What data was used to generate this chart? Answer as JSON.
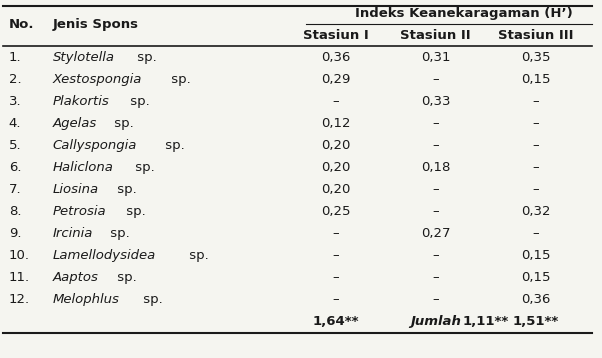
{
  "header_main": "Indeks Keanekaragaman (H’)",
  "header_sub": [
    "Stasiun I",
    "Stasiun II",
    "Stasiun III"
  ],
  "col_no": "No.",
  "col_species": "Jenis Spons",
  "rows": [
    {
      "no": "1.",
      "species": "Stylotella sp.",
      "italic_part": "Stylotella",
      "s1": "0,36",
      "s2": "0,31",
      "s3": "0,35"
    },
    {
      "no": "2.",
      "species": "Xestospongia sp.",
      "italic_part": "Xestospongia",
      "s1": "0,29",
      "s2": "–",
      "s3": "0,15"
    },
    {
      "no": "3.",
      "species": "Plakortis sp.",
      "italic_part": "Plakortis",
      "s1": "–",
      "s2": "0,33",
      "s3": "–"
    },
    {
      "no": "4.",
      "species": "Agelas sp.",
      "italic_part": "Agelas",
      "s1": "0,12",
      "s2": "–",
      "s3": "–"
    },
    {
      "no": "5.",
      "species": "Callyspongia sp.",
      "italic_part": "Callyspongia",
      "s1": "0,20",
      "s2": "–",
      "s3": "–"
    },
    {
      "no": "6.",
      "species": "Haliclona sp.",
      "italic_part": "Haliclona",
      "s1": "0,20",
      "s2": "0,18",
      "s3": "–"
    },
    {
      "no": "7.",
      "species": "Liosina sp.",
      "italic_part": "Liosina",
      "s1": "0,20",
      "s2": "–",
      "s3": "–"
    },
    {
      "no": "8.",
      "species": "Petrosia sp.",
      "italic_part": "Petrosia",
      "s1": "0,25",
      "s2": "–",
      "s3": "0,32"
    },
    {
      "no": "9.",
      "species": "Ircinia sp.",
      "italic_part": "Ircinia",
      "s1": "–",
      "s2": "0,27",
      "s3": "–"
    },
    {
      "no": "10.",
      "species": "Lamellodysidea sp.",
      "italic_part": "Lamellodysidea",
      "s1": "–",
      "s2": "–",
      "s3": "0,15"
    },
    {
      "no": "11.",
      "species": "Aaptos sp.",
      "italic_part": "Aaptos",
      "s1": "–",
      "s2": "–",
      "s3": "0,15"
    },
    {
      "no": "12.",
      "species": "Melophlus sp.",
      "italic_part": "Melophlus",
      "s1": "–",
      "s2": "–",
      "s3": "0,36"
    }
  ],
  "footer": {
    "species": "Jumlah",
    "s1": "1,64**",
    "s2": "1,11**",
    "s3": "1,51**"
  },
  "bg_color": "#f5f5f0",
  "text_color": "#1a1a1a",
  "font_size": 9.5
}
